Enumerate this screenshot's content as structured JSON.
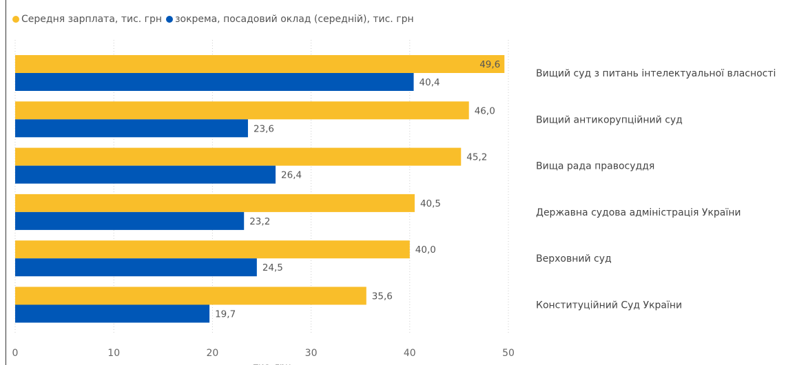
{
  "chart_data": {
    "type": "bar",
    "orientation": "horizontal",
    "categories": [
      "Вищий суд з питань інтелектуальної власності",
      "Вищий антикорупційний суд",
      "Вища рада правосуддя",
      "Державна судова адміністрація України",
      "Верховний суд",
      "Конституційний Суд України"
    ],
    "series": [
      {
        "name": "Середня зарплата, тис. грн",
        "color": "#F9BE2A",
        "values": [
          49.6,
          46.0,
          45.2,
          40.5,
          40.0,
          35.6
        ],
        "labels": [
          "49,6",
          "46,0",
          "45,2",
          "40,5",
          "40,0",
          "35,6"
        ]
      },
      {
        "name": "зокрема, посадовий оклад (середній), тис. грн",
        "color": "#0057B7",
        "values": [
          40.4,
          23.6,
          26.4,
          23.2,
          24.5,
          19.7
        ],
        "labels": [
          "40,4",
          "23,6",
          "26,4",
          "23,2",
          "24,5",
          "19,7"
        ]
      }
    ],
    "xlabel": "тис. грн",
    "xlim": [
      0,
      50
    ],
    "xticks": [
      "0",
      "10",
      "20",
      "30",
      "40",
      "50"
    ],
    "grid": true,
    "legend": "top-left"
  }
}
